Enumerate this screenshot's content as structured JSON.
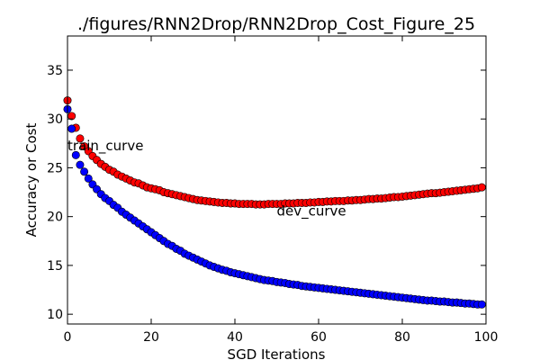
{
  "chart_data": {
    "type": "scatter",
    "title": "./figures/RNN2Drop/RNN2Drop_Cost_Figure_25",
    "xlabel": "SGD Iterations",
    "ylabel": "Accuracy or Cost",
    "xlim": [
      0,
      100
    ],
    "ylim": [
      9,
      38.5
    ],
    "xticks": [
      0,
      20,
      40,
      60,
      80,
      100
    ],
    "yticks": [
      10,
      15,
      20,
      25,
      30,
      35
    ],
    "grid": false,
    "legend": "none",
    "annotations": [
      {
        "text": "train_curve",
        "x": 0,
        "y": 28
      },
      {
        "text": "dev_curve",
        "x": 50,
        "y": 21.3
      }
    ],
    "series": [
      {
        "color": "#ff0000",
        "x": [
          0,
          1,
          2,
          3,
          4,
          5,
          6,
          7,
          8,
          9,
          10,
          11,
          12,
          13,
          14,
          15,
          16,
          17,
          18,
          19,
          20,
          21,
          22,
          23,
          24,
          25,
          26,
          27,
          28,
          29,
          30,
          31,
          32,
          33,
          34,
          35,
          36,
          37,
          38,
          39,
          40,
          41,
          42,
          43,
          44,
          45,
          46,
          47,
          48,
          49,
          50,
          51,
          52,
          53,
          54,
          55,
          56,
          57,
          58,
          59,
          60,
          61,
          62,
          63,
          64,
          65,
          66,
          67,
          68,
          69,
          70,
          71,
          72,
          73,
          74,
          75,
          76,
          77,
          78,
          79,
          80,
          81,
          82,
          83,
          84,
          85,
          86,
          87,
          88,
          89,
          90,
          91,
          92,
          93,
          94,
          95,
          96,
          97,
          98,
          99
        ],
        "values": [
          31.9,
          30.3,
          29.1,
          28.0,
          27.2,
          26.7,
          26.2,
          25.8,
          25.4,
          25.1,
          24.8,
          24.6,
          24.3,
          24.1,
          23.9,
          23.7,
          23.5,
          23.4,
          23.2,
          23.0,
          22.9,
          22.8,
          22.7,
          22.5,
          22.4,
          22.3,
          22.2,
          22.1,
          22.0,
          21.9,
          21.8,
          21.7,
          21.65,
          21.6,
          21.55,
          21.5,
          21.45,
          21.4,
          21.4,
          21.35,
          21.35,
          21.3,
          21.3,
          21.3,
          21.3,
          21.25,
          21.25,
          21.25,
          21.3,
          21.3,
          21.3,
          21.3,
          21.35,
          21.35,
          21.35,
          21.4,
          21.4,
          21.4,
          21.45,
          21.45,
          21.5,
          21.5,
          21.55,
          21.55,
          21.6,
          21.6,
          21.6,
          21.65,
          21.65,
          21.7,
          21.7,
          21.75,
          21.8,
          21.8,
          21.85,
          21.85,
          21.9,
          21.95,
          22.0,
          22.0,
          22.05,
          22.1,
          22.15,
          22.2,
          22.25,
          22.3,
          22.35,
          22.4,
          22.4,
          22.45,
          22.5,
          22.55,
          22.6,
          22.65,
          22.7,
          22.75,
          22.8,
          22.85,
          22.9,
          23.0
        ]
      },
      {
        "color": "#0000ff",
        "x": [
          0,
          1,
          2,
          3,
          4,
          5,
          6,
          7,
          8,
          9,
          10,
          11,
          12,
          13,
          14,
          15,
          16,
          17,
          18,
          19,
          20,
          21,
          22,
          23,
          24,
          25,
          26,
          27,
          28,
          29,
          30,
          31,
          32,
          33,
          34,
          35,
          36,
          37,
          38,
          39,
          40,
          41,
          42,
          43,
          44,
          45,
          46,
          47,
          48,
          49,
          50,
          51,
          52,
          53,
          54,
          55,
          56,
          57,
          58,
          59,
          60,
          61,
          62,
          63,
          64,
          65,
          66,
          67,
          68,
          69,
          70,
          71,
          72,
          73,
          74,
          75,
          76,
          77,
          78,
          79,
          80,
          81,
          82,
          83,
          84,
          85,
          86,
          87,
          88,
          89,
          90,
          91,
          92,
          93,
          94,
          95,
          96,
          97,
          98,
          99
        ],
        "values": [
          31.0,
          29.0,
          26.3,
          25.3,
          24.6,
          23.9,
          23.3,
          22.8,
          22.3,
          21.9,
          21.6,
          21.2,
          20.9,
          20.5,
          20.2,
          19.9,
          19.6,
          19.3,
          19.0,
          18.7,
          18.4,
          18.1,
          17.8,
          17.5,
          17.2,
          17.0,
          16.7,
          16.5,
          16.2,
          16.0,
          15.8,
          15.6,
          15.4,
          15.2,
          15.0,
          14.85,
          14.7,
          14.55,
          14.45,
          14.3,
          14.2,
          14.1,
          14.0,
          13.9,
          13.8,
          13.7,
          13.6,
          13.5,
          13.45,
          13.4,
          13.3,
          13.25,
          13.2,
          13.1,
          13.05,
          13.0,
          12.9,
          12.85,
          12.8,
          12.75,
          12.7,
          12.65,
          12.6,
          12.55,
          12.5,
          12.45,
          12.4,
          12.35,
          12.3,
          12.25,
          12.2,
          12.15,
          12.1,
          12.05,
          12.0,
          11.95,
          11.9,
          11.85,
          11.8,
          11.75,
          11.7,
          11.65,
          11.6,
          11.55,
          11.5,
          11.45,
          11.4,
          11.4,
          11.35,
          11.3,
          11.3,
          11.25,
          11.2,
          11.2,
          11.15,
          11.1,
          11.1,
          11.05,
          11.0,
          11.0
        ]
      }
    ]
  }
}
